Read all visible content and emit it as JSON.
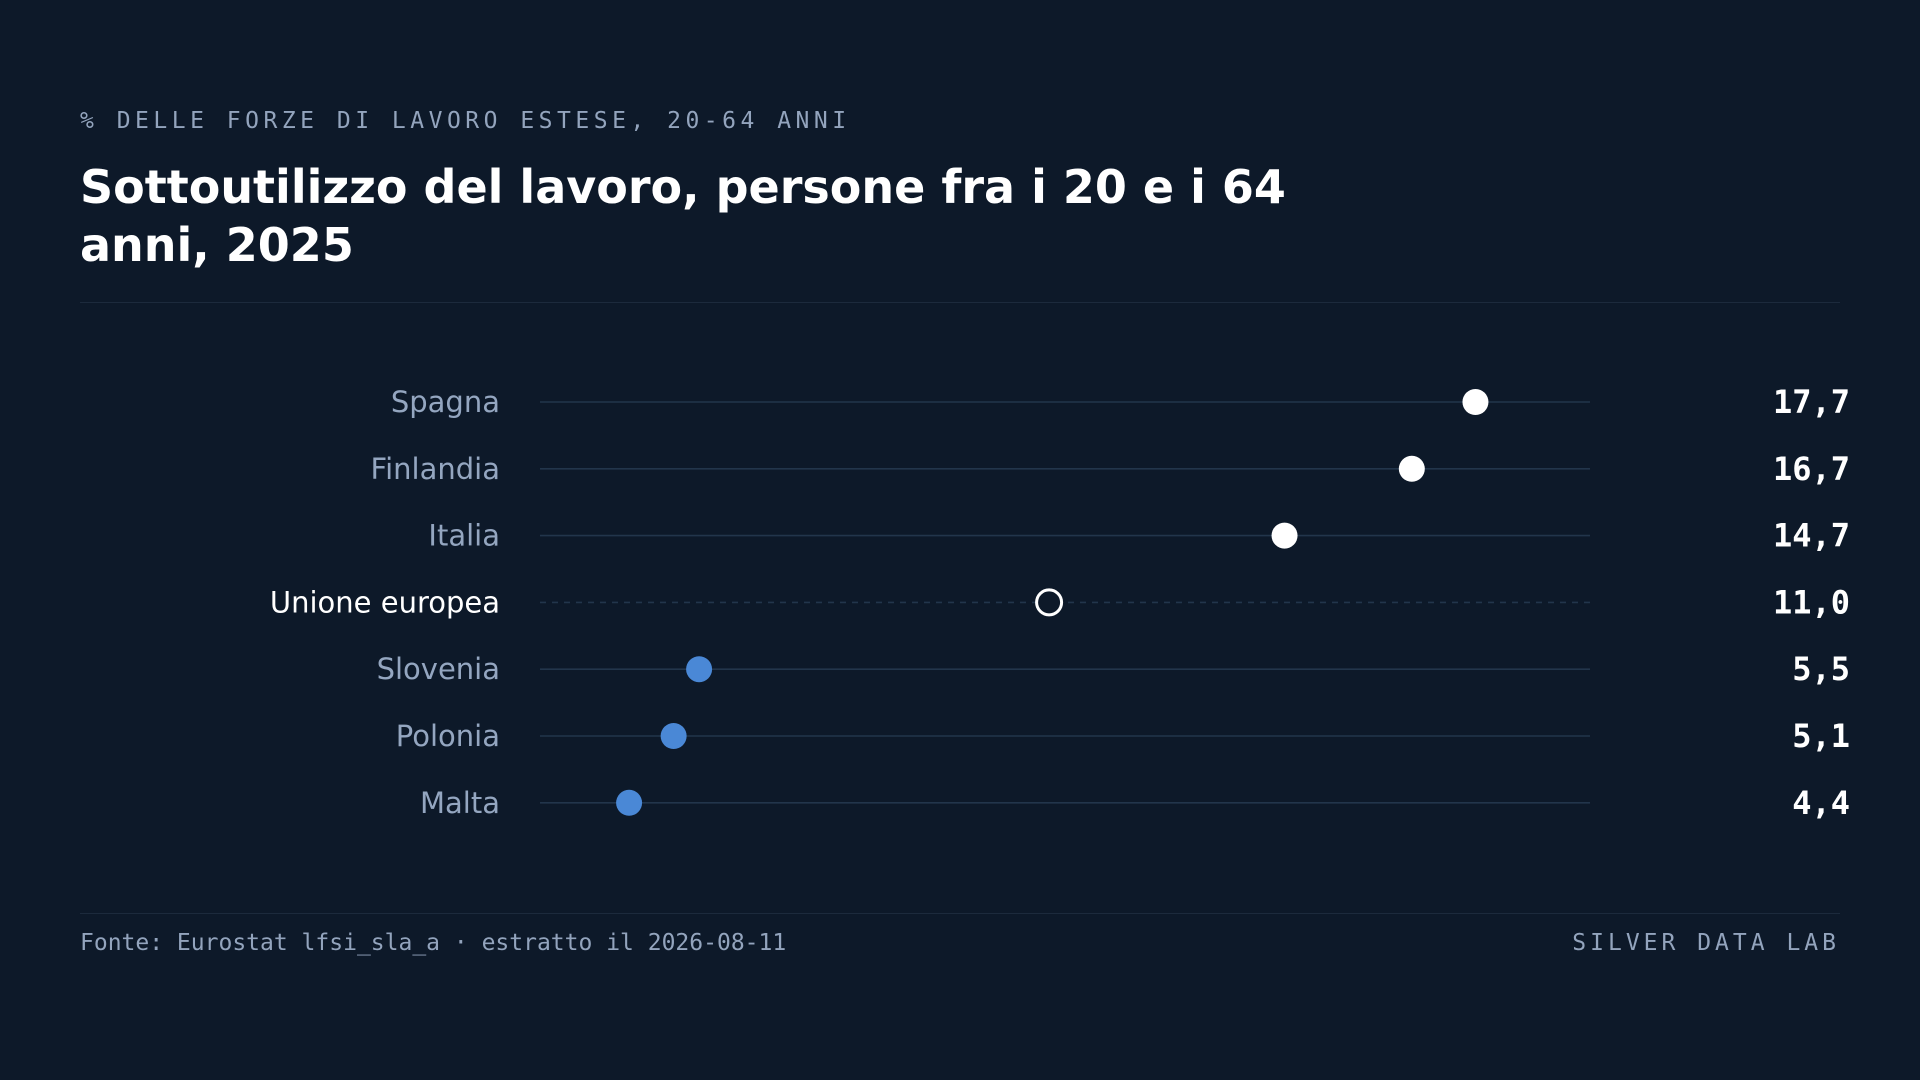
{
  "header": {
    "kicker": "% DELLE FORZE DI LAVORO ESTESE, 20-64 ANNI",
    "title": "Sottoutilizzo del lavoro, persone fra i 20 e i 64 anni, 2025"
  },
  "footer": {
    "source": "Fonte: Eurostat lfsi_sla_a · estratto il 2026-08-11",
    "brand": "SILVER DATA LAB"
  },
  "colors": {
    "background": "#0d1929",
    "high": "#ffffff",
    "low": "#4a88d6",
    "reference": "#ffffff",
    "track": "#22354b"
  },
  "chart_data": {
    "type": "scatter",
    "subtype": "dot-plot",
    "xlim": [
      3,
      19.5
    ],
    "grid": false,
    "legend": "none",
    "points": [
      {
        "category": "Spagna",
        "value": 17.7,
        "label": "17,7",
        "group": "high"
      },
      {
        "category": "Finlandia",
        "value": 16.7,
        "label": "16,7",
        "group": "high"
      },
      {
        "category": "Italia",
        "value": 14.7,
        "label": "14,7",
        "group": "high"
      },
      {
        "category": "Unione europea",
        "value": 11.0,
        "label": "11,0",
        "group": "reference"
      },
      {
        "category": "Slovenia",
        "value": 5.5,
        "label": "5,5",
        "group": "low"
      },
      {
        "category": "Polonia",
        "value": 5.1,
        "label": "5,1",
        "group": "low"
      },
      {
        "category": "Malta",
        "value": 4.4,
        "label": "4,4",
        "group": "low"
      }
    ]
  }
}
